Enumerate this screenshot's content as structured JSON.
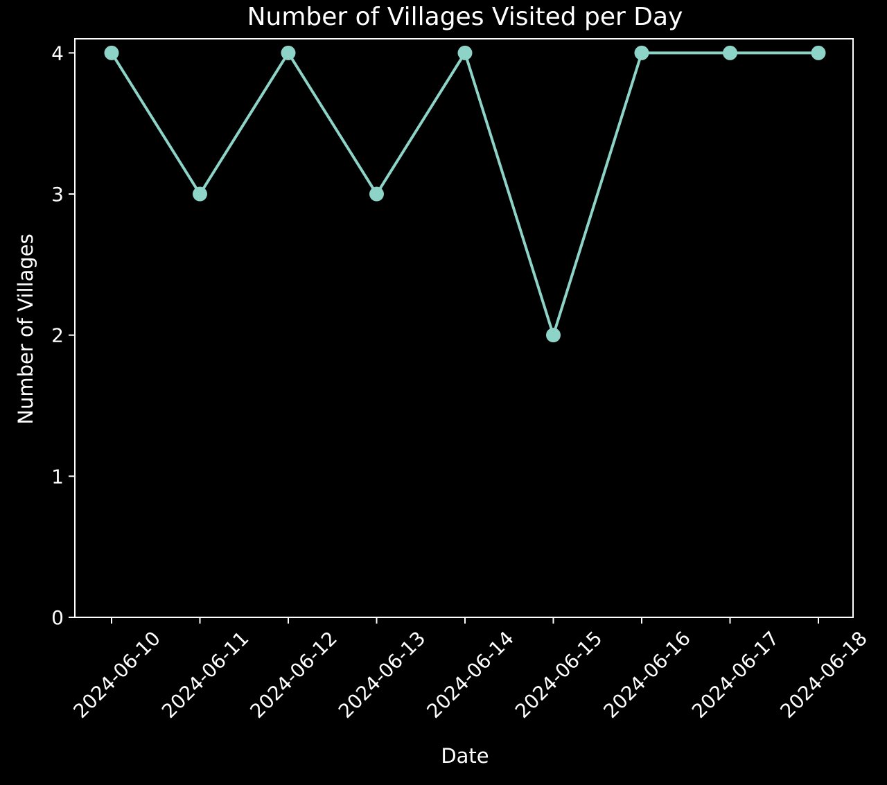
{
  "chart_data": {
    "type": "line",
    "title": "Number of Villages Visited per Day",
    "xlabel": "Date",
    "ylabel": "Number of Villages",
    "x": [
      "2024-06-10",
      "2024-06-11",
      "2024-06-12",
      "2024-06-13",
      "2024-06-14",
      "2024-06-15",
      "2024-06-16",
      "2024-06-17",
      "2024-06-18"
    ],
    "series": [
      {
        "values": [
          4,
          3,
          4,
          3,
          4,
          2,
          4,
          4,
          4
        ],
        "color": "#8dd3c7",
        "marker": "circle"
      }
    ],
    "ylim": [
      0,
      4.1
    ],
    "yticks": [
      0,
      1,
      2,
      3,
      4
    ],
    "grid": false,
    "background": "#000000",
    "axis_color": "#ffffff"
  }
}
